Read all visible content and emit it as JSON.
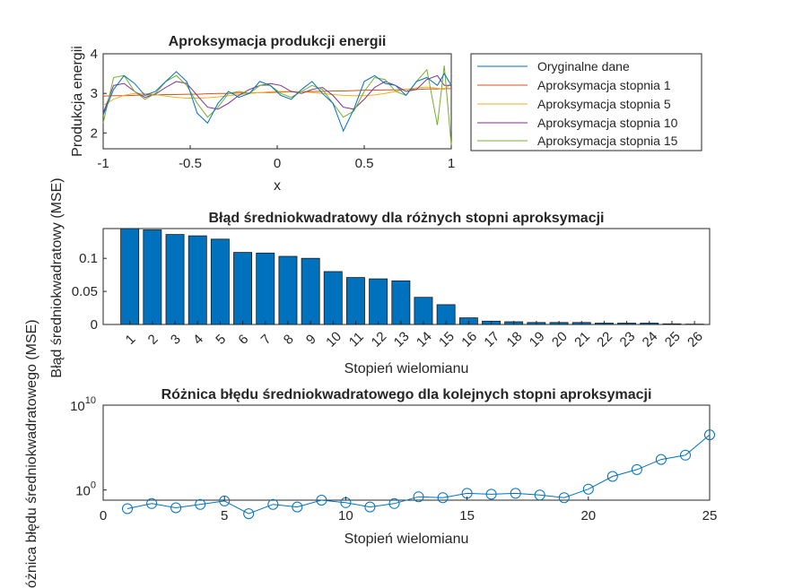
{
  "colors": {
    "axis": "#262626",
    "bar_fill": "#0072BD",
    "bar_edge": "#1a1a1a",
    "line_orig": "#0072BD",
    "line_deg1": "#D95319",
    "line_deg5": "#EDB120",
    "line_deg10": "#7E2F8E",
    "line_deg15": "#77AC30",
    "marker": "#0072BD"
  },
  "chart_data": [
    {
      "type": "line",
      "title": "Aproksymacja produkcji energii",
      "xlabel": "x",
      "ylabel": "Produkcja energii",
      "xlim": [
        -1,
        1
      ],
      "ylim": [
        1.6,
        4
      ],
      "xticks": [
        -1,
        -0.5,
        0,
        0.5,
        1
      ],
      "xtick_labels": [
        "-1",
        "-0.5",
        "0",
        "0.5",
        "1"
      ],
      "yticks": [
        2,
        3,
        4
      ],
      "ytick_labels": [
        "2",
        "3",
        "4"
      ],
      "legend_position": "outside-right",
      "x": [
        -1,
        -0.94,
        -0.88,
        -0.82,
        -0.76,
        -0.7,
        -0.64,
        -0.58,
        -0.52,
        -0.46,
        -0.4,
        -0.34,
        -0.28,
        -0.22,
        -0.16,
        -0.1,
        -0.04,
        0.02,
        0.08,
        0.14,
        0.2,
        0.26,
        0.32,
        0.38,
        0.44,
        0.5,
        0.56,
        0.62,
        0.68,
        0.74,
        0.8,
        0.86,
        0.92,
        0.96,
        1
      ],
      "series": [
        {
          "name": "Oryginalne dane",
          "values": [
            2.45,
            3.1,
            3.45,
            3.25,
            2.95,
            3.05,
            3.3,
            3.55,
            3.3,
            2.5,
            2.25,
            2.75,
            3.05,
            2.9,
            3.0,
            3.3,
            3.2,
            2.95,
            2.85,
            3.1,
            3.3,
            3.0,
            2.75,
            2.05,
            2.6,
            3.3,
            3.45,
            3.25,
            3.2,
            2.95,
            3.3,
            3.4,
            3.2,
            3.5,
            3.2
          ]
        },
        {
          "name": "Aproksymacja stopnia 1",
          "values": [
            2.93,
            2.94,
            2.94,
            2.95,
            2.96,
            2.96,
            2.97,
            2.97,
            2.98,
            2.98,
            2.99,
            3.0,
            3.0,
            3.01,
            3.01,
            3.02,
            3.02,
            3.03,
            3.04,
            3.04,
            3.05,
            3.05,
            3.06,
            3.06,
            3.07,
            3.08,
            3.08,
            3.09,
            3.09,
            3.1,
            3.1,
            3.11,
            3.11,
            3.12,
            3.12
          ]
        },
        {
          "name": "Aproksymacja stopnia 5",
          "values": [
            2.7,
            2.85,
            2.95,
            3.0,
            3.0,
            2.97,
            2.93,
            2.9,
            2.88,
            2.88,
            2.89,
            2.91,
            2.94,
            2.97,
            3.0,
            3.02,
            3.04,
            3.05,
            3.05,
            3.04,
            3.02,
            3.0,
            2.97,
            2.95,
            2.94,
            2.94,
            2.96,
            3.0,
            3.05,
            3.1,
            3.14,
            3.16,
            3.13,
            3.1,
            3.25
          ]
        },
        {
          "name": "Aproksymacja stopnia 10",
          "values": [
            2.5,
            3.2,
            3.25,
            3.05,
            2.9,
            2.98,
            3.15,
            3.3,
            3.25,
            2.95,
            2.65,
            2.6,
            2.75,
            2.95,
            3.1,
            3.2,
            3.25,
            3.2,
            3.05,
            3.0,
            3.1,
            3.15,
            2.95,
            2.65,
            2.6,
            2.85,
            3.15,
            3.3,
            3.2,
            3.05,
            3.1,
            3.35,
            3.45,
            3.2,
            3.2
          ]
        },
        {
          "name": "Aproksymacja stopnia 15",
          "values": [
            2.25,
            3.4,
            3.45,
            3.05,
            2.85,
            3.0,
            3.3,
            3.45,
            3.2,
            2.75,
            2.4,
            2.65,
            3.0,
            3.05,
            3.0,
            3.2,
            3.2,
            3.0,
            2.9,
            3.05,
            3.2,
            3.1,
            2.75,
            2.4,
            2.55,
            3.05,
            3.4,
            3.35,
            3.05,
            2.95,
            3.3,
            3.6,
            2.2,
            3.7,
            1.7
          ]
        }
      ]
    },
    {
      "type": "bar",
      "title": "Błąd średniokwadratowy dla różnych stopni aproksymacji",
      "xlabel": "Stopień wielomianu",
      "ylabel": "Błąd średniokwadratowy (MSE)",
      "ylim": [
        0,
        0.145
      ],
      "yticks": [
        0,
        0.05,
        0.1
      ],
      "ytick_labels": [
        "0",
        "0.05",
        "0.1"
      ],
      "categories": [
        "1",
        "2",
        "3",
        "4",
        "5",
        "6",
        "7",
        "8",
        "9",
        "10",
        "11",
        "12",
        "13",
        "14",
        "15",
        "16",
        "17",
        "18",
        "19",
        "20",
        "21",
        "22",
        "23",
        "24",
        "25",
        "26"
      ],
      "values": [
        0.145,
        0.143,
        0.136,
        0.134,
        0.129,
        0.109,
        0.108,
        0.103,
        0.1,
        0.08,
        0.071,
        0.069,
        0.066,
        0.041,
        0.03,
        0.01,
        0.005,
        0.004,
        0.003,
        0.003,
        0.003,
        0.002,
        0.002,
        0.002,
        0.001,
        0.0005
      ]
    },
    {
      "type": "line",
      "title": "Różnica błędu średniokwadratowego dla kolejnych stopni aproksymacji",
      "xlabel": "Stopień wielomianu",
      "ylabel": "Różnica błędu średniokwadratowego (MSE)",
      "yscale": "log",
      "xlim": [
        0,
        25
      ],
      "ylim_exp": [
        -1.2,
        10
      ],
      "xticks": [
        0,
        5,
        10,
        15,
        20,
        25
      ],
      "xtick_labels": [
        "0",
        "5",
        "10",
        "15",
        "20",
        "25"
      ],
      "yticks_exp": [
        0,
        10
      ],
      "ytick_base": "10",
      "x": [
        1,
        2,
        3,
        4,
        5,
        6,
        7,
        8,
        9,
        10,
        11,
        12,
        13,
        14,
        15,
        16,
        17,
        18,
        19,
        20,
        21,
        22,
        23,
        24,
        25
      ],
      "log10_values": [
        -2.2,
        -1.6,
        -2.1,
        -1.7,
        -1.3,
        -2.8,
        -1.7,
        -2.0,
        -1.2,
        -1.5,
        -2.0,
        -1.6,
        -0.8,
        -0.9,
        -0.4,
        -0.5,
        -0.4,
        -0.6,
        -0.9,
        0.1,
        1.6,
        2.4,
        3.6,
        4.1,
        6.5
      ]
    }
  ]
}
